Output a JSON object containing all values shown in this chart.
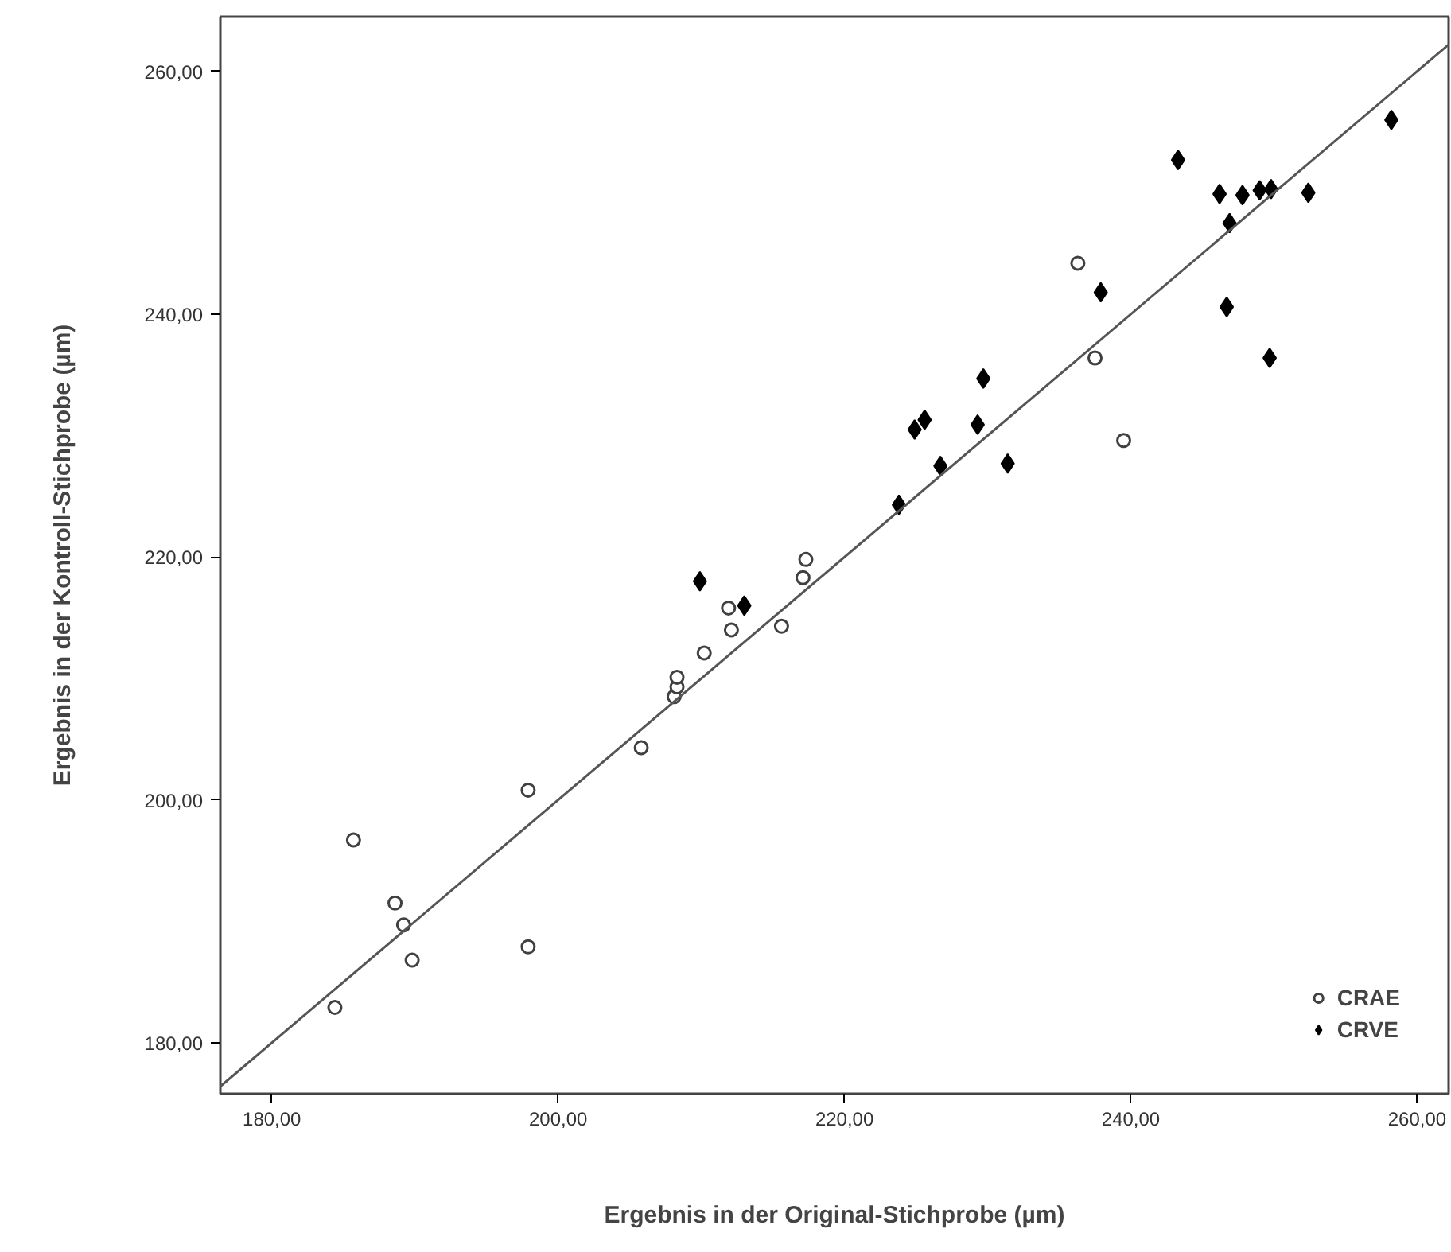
{
  "chart_data": {
    "type": "scatter",
    "xlabel": "Ergebnis in der Original-Stichprobe (µm)",
    "ylabel": "Ergebnis in der Kontroll-Stichprobe (µm)",
    "xlim": [
      176.4,
      262.2
    ],
    "ylim": [
      175.8,
      264.5
    ],
    "xticks": [
      {
        "value": 180,
        "label": "180,00"
      },
      {
        "value": 200,
        "label": "200,00"
      },
      {
        "value": 220,
        "label": "220,00"
      },
      {
        "value": 240,
        "label": "240,00"
      },
      {
        "value": 260,
        "label": "260,00"
      }
    ],
    "yticks": [
      {
        "value": 180,
        "label": "180,00"
      },
      {
        "value": 200,
        "label": "200,00"
      },
      {
        "value": 220,
        "label": "220,00"
      },
      {
        "value": 240,
        "label": "240,00"
      },
      {
        "value": 260,
        "label": "260,00"
      }
    ],
    "grid": false,
    "legend": "bottom right",
    "series": [
      {
        "name": "CRAE",
        "color": "#404040",
        "marker": "circle",
        "x": [
          184.4,
          185.7,
          188.6,
          189.2,
          189.8,
          197.9,
          197.9,
          205.8,
          208.1,
          208.3,
          208.3,
          217.3,
          217.1,
          211.9,
          212.1,
          215.6,
          210.2,
          236.3,
          237.5,
          239.5
        ],
        "values": [
          182.9,
          196.7,
          191.5,
          189.7,
          186.8,
          200.8,
          187.9,
          204.3,
          208.5,
          209.3,
          210.1,
          219.8,
          218.3,
          215.8,
          214.0,
          214.3,
          212.1,
          244.2,
          236.4,
          229.6
        ]
      },
      {
        "name": "CRVE",
        "color": "#000000",
        "marker": "diamond",
        "x": [
          209.9,
          213.0,
          243.3,
          246.2,
          247.8,
          249.0,
          249.8,
          252.4,
          246.9,
          246.7,
          249.7,
          258.2,
          237.9,
          229.7,
          224.9,
          225.6,
          229.3,
          226.7,
          231.4,
          223.8
        ],
        "values": [
          218.0,
          216.0,
          252.7,
          249.9,
          249.8,
          250.2,
          250.3,
          250.0,
          247.5,
          240.6,
          236.4,
          256.0,
          241.8,
          234.7,
          230.5,
          231.3,
          230.9,
          227.5,
          227.7,
          224.3
        ]
      },
      {
        "type": "line",
        "color": "#555555",
        "line_style": "solid",
        "x": [
          176.4,
          262.2
        ],
        "values": [
          176.4,
          262.2
        ]
      }
    ]
  }
}
